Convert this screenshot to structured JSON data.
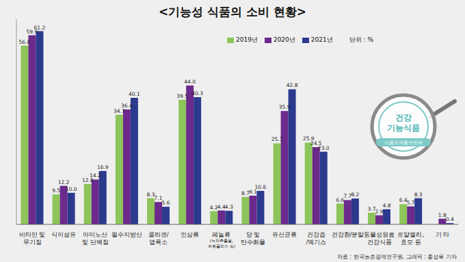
{
  "chart_data": {
    "type": "bar",
    "title": "<기능성 식품의 소비 현황>",
    "unit": "단위 : %",
    "source": "자료 : 한국농촌경제연구원, 그래픽 : 홍성욱 기자",
    "badge": {
      "lines": [
        "건강",
        "기능식품"
      ],
      "caption": "식품의약품안전처"
    },
    "categories": [
      "비타민 및\n무기질",
      "식이섬유",
      "아미노산\n및 단백질",
      "필수지방산",
      "콜라겐/\n엽록소",
      "인삼류",
      "페놀류\n(녹차추출물,\n프로폴리스 등)",
      "당 및\n탄수화물",
      "유산균류",
      "건강즙\n/엑기스",
      "건강환/분말",
      "동물성원료\n건강식품",
      "로얄젤리,\n효모 등",
      "기 타"
    ],
    "series": [
      {
        "name": "2019년",
        "color": "#8dc55a",
        "values": [
          56.6,
          9.5,
          12.8,
          34.7,
          8.3,
          39.5,
          4.2,
          8.7,
          25.7,
          25.9,
          6.6,
          3.7,
          6.4,
          0.0
        ],
        "value_labels": [
          "56.6",
          "9.5",
          "12.8",
          "34.7",
          "8.3",
          "39.5",
          "4.2",
          "8.7",
          "25.7",
          "25.9",
          "6.6",
          "3.7",
          "6.4",
          "0.0"
        ]
      },
      {
        "name": "2020년",
        "color": "#6b2a8c",
        "values": [
          59.9,
          12.2,
          14.2,
          36.4,
          7.1,
          44.0,
          4.4,
          9.1,
          35.9,
          24.5,
          7.7,
          2.9,
          5.7,
          1.8
        ],
        "value_labels": [
          "59.9",
          "12.2",
          "14.2",
          "36.4",
          "7.1",
          "44.0",
          "4.4",
          "9.1",
          "35.9",
          "24.5",
          "7.7",
          "2.9",
          "5.7",
          "1.8"
        ]
      },
      {
        "name": "2021년",
        "color": "#2c3a8e",
        "values": [
          61.2,
          10.0,
          16.9,
          40.1,
          5.6,
          40.3,
          4.3,
          10.6,
          42.8,
          23.0,
          8.2,
          4.8,
          8.3,
          0.4
        ],
        "value_labels": [
          "61.2",
          "10.0",
          "16.9",
          "40.1",
          "5.6",
          "40.3",
          "4.3",
          "10.6",
          "42.8",
          "23.0",
          "8.2",
          "4.8",
          "8.3",
          "0.4"
        ]
      }
    ],
    "ylim": [
      0,
      65
    ],
    "legend": "top",
    "data_labels": true,
    "tick_labels": "x",
    "grid": false
  }
}
